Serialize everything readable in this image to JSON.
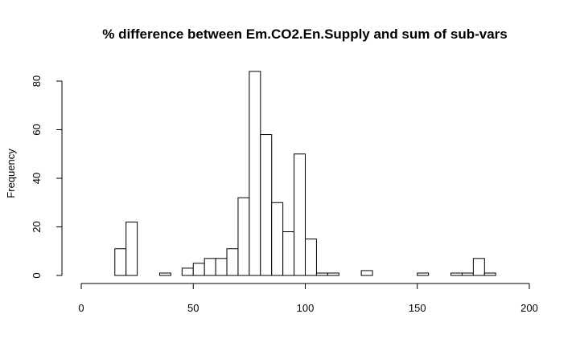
{
  "chart_data": {
    "type": "bar",
    "subtype": "histogram",
    "title": "% difference between Em.CO2.En.Supply and sum of sub-vars",
    "xlabel": "",
    "ylabel": "Frequency",
    "xlim": [
      0,
      200
    ],
    "ylim": [
      0,
      80
    ],
    "x_ticks": [
      0,
      50,
      100,
      150,
      200
    ],
    "y_ticks": [
      0,
      20,
      40,
      60,
      80
    ],
    "bin_width": 5,
    "bins": [
      {
        "start": 0,
        "end": 5,
        "count": 0
      },
      {
        "start": 5,
        "end": 10,
        "count": 0
      },
      {
        "start": 10,
        "end": 15,
        "count": 0
      },
      {
        "start": 15,
        "end": 20,
        "count": 11
      },
      {
        "start": 20,
        "end": 25,
        "count": 22
      },
      {
        "start": 25,
        "end": 30,
        "count": 0
      },
      {
        "start": 30,
        "end": 35,
        "count": 0
      },
      {
        "start": 35,
        "end": 40,
        "count": 1
      },
      {
        "start": 40,
        "end": 45,
        "count": 0
      },
      {
        "start": 45,
        "end": 50,
        "count": 3
      },
      {
        "start": 50,
        "end": 55,
        "count": 5
      },
      {
        "start": 55,
        "end": 60,
        "count": 7
      },
      {
        "start": 60,
        "end": 65,
        "count": 7
      },
      {
        "start": 65,
        "end": 70,
        "count": 11
      },
      {
        "start": 70,
        "end": 75,
        "count": 32
      },
      {
        "start": 75,
        "end": 80,
        "count": 84
      },
      {
        "start": 80,
        "end": 85,
        "count": 58
      },
      {
        "start": 85,
        "end": 90,
        "count": 30
      },
      {
        "start": 90,
        "end": 95,
        "count": 18
      },
      {
        "start": 95,
        "end": 100,
        "count": 50
      },
      {
        "start": 100,
        "end": 105,
        "count": 15
      },
      {
        "start": 105,
        "end": 110,
        "count": 1
      },
      {
        "start": 110,
        "end": 115,
        "count": 1
      },
      {
        "start": 115,
        "end": 120,
        "count": 0
      },
      {
        "start": 120,
        "end": 125,
        "count": 0
      },
      {
        "start": 125,
        "end": 130,
        "count": 2
      },
      {
        "start": 130,
        "end": 135,
        "count": 0
      },
      {
        "start": 135,
        "end": 140,
        "count": 0
      },
      {
        "start": 140,
        "end": 145,
        "count": 0
      },
      {
        "start": 145,
        "end": 150,
        "count": 0
      },
      {
        "start": 150,
        "end": 155,
        "count": 1
      },
      {
        "start": 155,
        "end": 160,
        "count": 0
      },
      {
        "start": 160,
        "end": 165,
        "count": 0
      },
      {
        "start": 165,
        "end": 170,
        "count": 1
      },
      {
        "start": 170,
        "end": 175,
        "count": 1
      },
      {
        "start": 175,
        "end": 180,
        "count": 7
      },
      {
        "start": 180,
        "end": 185,
        "count": 1
      },
      {
        "start": 185,
        "end": 190,
        "count": 0
      },
      {
        "start": 190,
        "end": 195,
        "count": 0
      },
      {
        "start": 195,
        "end": 200,
        "count": 0
      }
    ],
    "grid": false,
    "legend": "none",
    "colors": {
      "bar_fill": "#ffffff",
      "bar_stroke": "#000000",
      "axis": "#000000"
    }
  }
}
